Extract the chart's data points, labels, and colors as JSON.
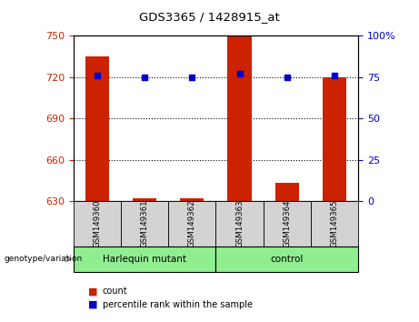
{
  "title": "GDS3365 / 1428915_at",
  "samples": [
    "GSM149360",
    "GSM149361",
    "GSM149362",
    "GSM149363",
    "GSM149364",
    "GSM149365"
  ],
  "count_values": [
    735,
    632,
    632,
    750,
    643,
    720
  ],
  "percentile_values": [
    76,
    75,
    75,
    77,
    75,
    76
  ],
  "ylim_left": [
    630,
    750
  ],
  "ylim_right": [
    0,
    100
  ],
  "yticks_left": [
    630,
    660,
    690,
    720,
    750
  ],
  "yticks_right": [
    0,
    25,
    50,
    75,
    100
  ],
  "ytick_labels_right": [
    "0",
    "25",
    "50",
    "75",
    "100%"
  ],
  "bar_color": "#cc2200",
  "dot_color": "#0000cc",
  "group1_label": "Harlequin mutant",
  "group2_label": "control",
  "group1_indices": [
    0,
    1,
    2
  ],
  "group2_indices": [
    3,
    4,
    5
  ],
  "legend_count": "count",
  "legend_percentile": "percentile rank within the sample",
  "group_bg": "#90ee90",
  "sample_bg": "#d3d3d3"
}
